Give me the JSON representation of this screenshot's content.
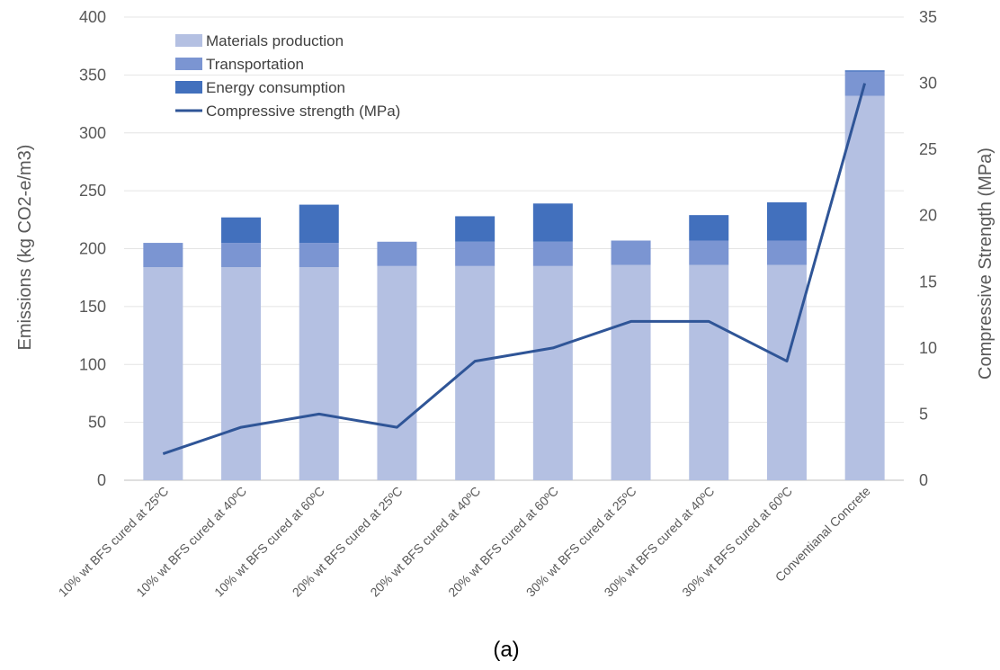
{
  "caption": "(a)",
  "chart_data": {
    "type": "bar",
    "stacked": true,
    "categories": [
      "10% wt BFS cured at 25ºC",
      "10% wt BFS cured at 40ºC",
      "10% wt BFS cured at 60ºC",
      "20% wt BFS cured at 25ºC",
      "20% wt BFS cured at 40ºC",
      "20% wt BFS cured at 60ºC",
      "30% wt BFS cured at 25ºC",
      "30% wt BFS cured at 40ºC",
      "30% wt BFS cured at 60ºC",
      "Conventianal Concrete"
    ],
    "series": [
      {
        "name": "Materials production",
        "axis": "left",
        "color": "#b4c0e2",
        "values": [
          184,
          184,
          184,
          185,
          185,
          185,
          186,
          186,
          186,
          332
        ]
      },
      {
        "name": "Transportation",
        "axis": "left",
        "color": "#7b95d2",
        "values": [
          21,
          21,
          21,
          21,
          21,
          21,
          21,
          21,
          21,
          21
        ]
      },
      {
        "name": "Energy consumption",
        "axis": "left",
        "color": "#4270bd",
        "values": [
          0,
          22,
          33,
          0,
          22,
          33,
          0,
          22,
          33,
          1
        ]
      }
    ],
    "line_series": {
      "name": "Compressive strength (MPa)",
      "axis": "right",
      "color": "#2f5597",
      "values": [
        2,
        4,
        5,
        4,
        9,
        10,
        12,
        12,
        9,
        30
      ]
    },
    "ylabel": "Emissions (kg CO2-e/m3)",
    "y2label": "Compressive Strength (MPa)",
    "ylim": [
      0,
      400
    ],
    "y_ticks": [
      0,
      50,
      100,
      150,
      200,
      250,
      300,
      350,
      400
    ],
    "y2lim": [
      0,
      35
    ],
    "y2_ticks": [
      0,
      5,
      10,
      15,
      20,
      25,
      30,
      35
    ],
    "grid": true,
    "legend_position": "top-left"
  }
}
